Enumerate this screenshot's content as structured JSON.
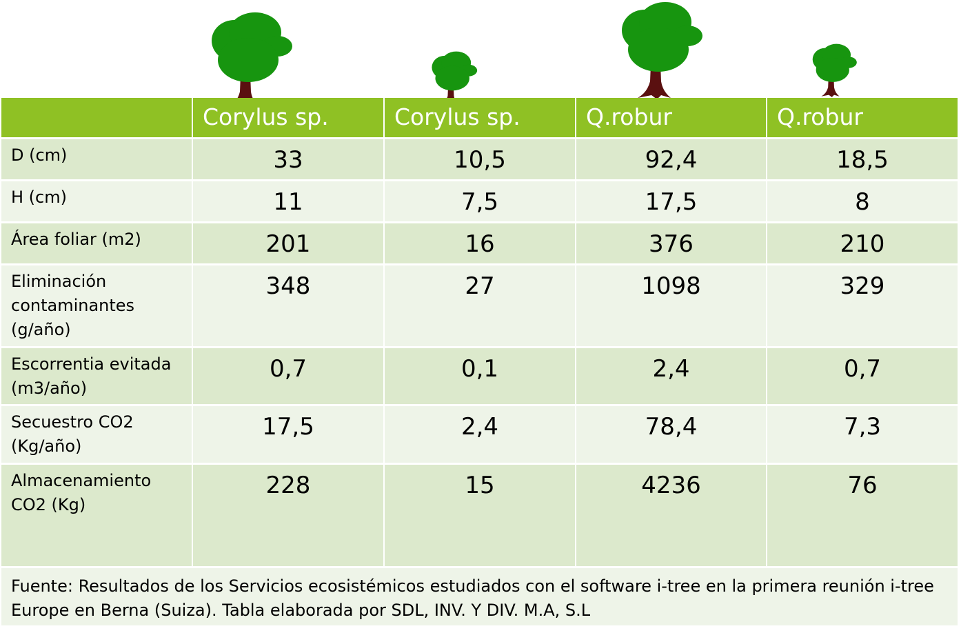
{
  "colors": {
    "header": "#8fc124",
    "row_dark": "#dce9cc",
    "row_light": "#eef4e8",
    "tree_canopy": "#17950f",
    "tree_trunk": "#5a1010"
  },
  "icons": [
    "tree-icon"
  ],
  "header": {
    "corner": "",
    "columns": [
      "Corylus sp.",
      "Corylus sp.",
      "Q.robur",
      "Q.robur"
    ]
  },
  "rows": [
    {
      "label": "D (cm)",
      "values": [
        "33",
        "10,5",
        "92,4",
        "18,5"
      ]
    },
    {
      "label": "H (cm)",
      "values": [
        "11",
        "7,5",
        "17,5",
        "8"
      ]
    },
    {
      "label": "Área foliar (m2)",
      "values": [
        "201",
        "16",
        "376",
        "210"
      ]
    },
    {
      "label": "Eliminación contaminantes (g/año)",
      "values": [
        "348",
        "27",
        "1098",
        "329"
      ]
    },
    {
      "label": "Escorrentia evitada (m3/año)",
      "values": [
        "0,7",
        "0,1",
        "2,4",
        "0,7"
      ]
    },
    {
      "label": "Secuestro CO2 (Kg/año)",
      "values": [
        "17,5",
        "2,4",
        "78,4",
        "7,3"
      ]
    },
    {
      "label": "Almacenamiento CO2 (Kg)",
      "values": [
        "228",
        "15",
        "4236",
        "76"
      ]
    }
  ],
  "footer": "Fuente: Resultados de los Servicios ecosistémicos estudiados con el software i-tree en la primera reunión i-tree Europe en Berna (Suiza). Tabla elaborada por SDL, INV. Y DIV. M.A, S.L"
}
